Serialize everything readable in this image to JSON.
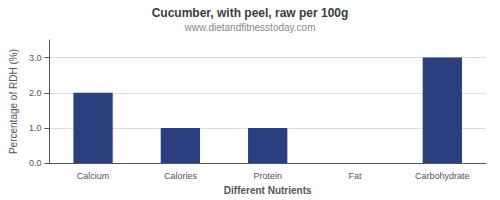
{
  "chart_data": {
    "type": "bar",
    "title": "Cucumber, with peel, raw per 100g",
    "subtitle": "www.dietandfitnesstoday.com",
    "xlabel": "Different Nutrients",
    "ylabel": "Percentage of RDH (%)",
    "categories": [
      "Calcium",
      "Calories",
      "Protein",
      "Fat",
      "Carbohydrate"
    ],
    "values": [
      2.0,
      1.0,
      1.0,
      0.0,
      3.0
    ],
    "color": "#2b3f7e",
    "ylim": [
      0,
      3.5
    ],
    "yticks": [
      {
        "value": 0.0,
        "label": "0.0"
      },
      {
        "value": 1.0,
        "label": "1.0"
      },
      {
        "value": 2.0,
        "label": "2.0"
      },
      {
        "value": 3.0,
        "label": "3.0"
      }
    ],
    "grid": true
  }
}
